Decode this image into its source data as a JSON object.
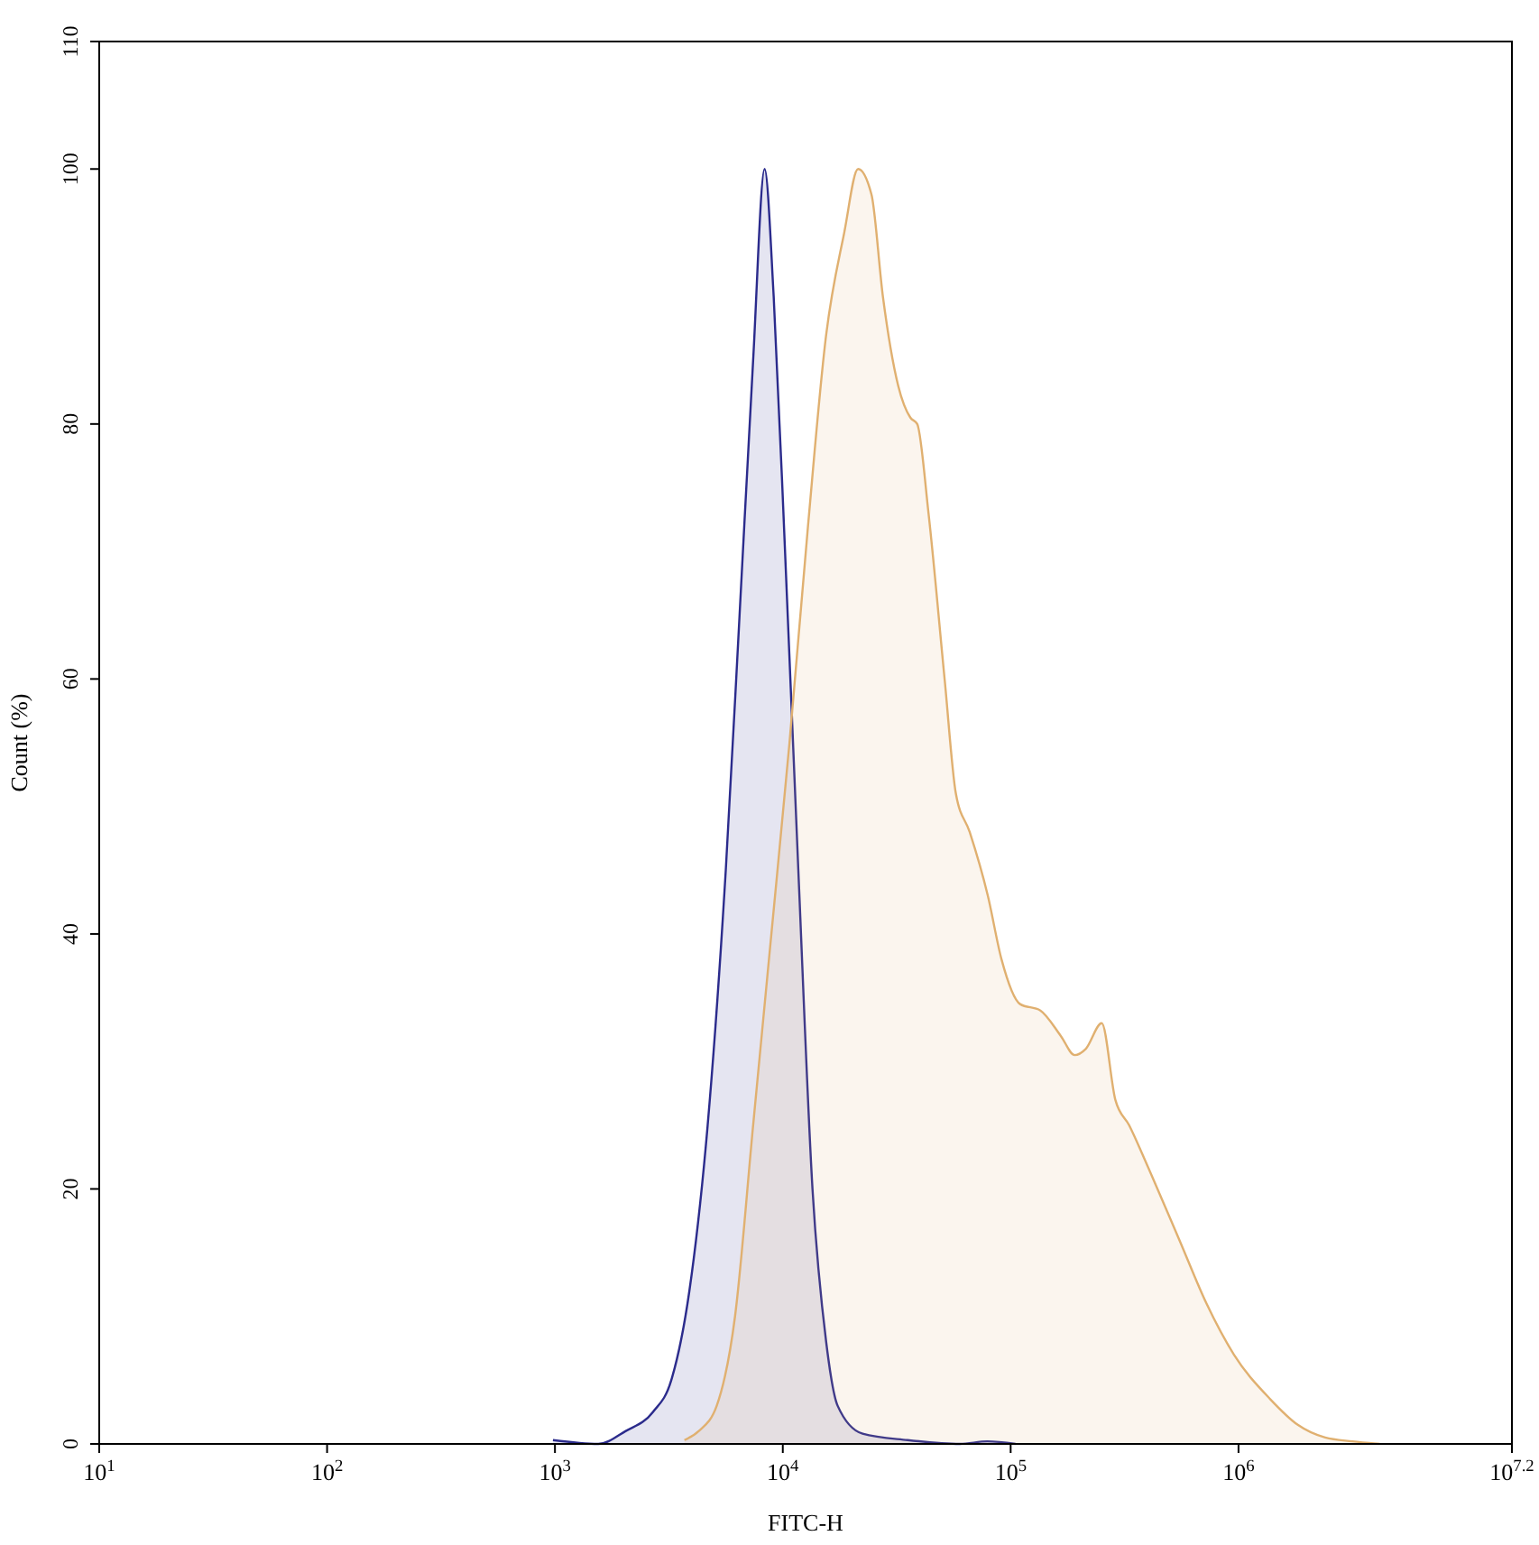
{
  "chart_data": {
    "type": "area",
    "xlabel": "FITC-H",
    "ylabel": "Count (%)",
    "log": "x",
    "xlim": [
      10,
      15848932
    ],
    "ylim": [
      0,
      110
    ],
    "xticks": [
      {
        "value": 10,
        "label": "10$^{1}$"
      },
      {
        "value": 100,
        "label": "10$^{2}$"
      },
      {
        "value": 1000,
        "label": "10$^{3}$"
      },
      {
        "value": 10000,
        "label": "10$^{4}$"
      },
      {
        "value": 100000,
        "label": "10$^{5}$"
      },
      {
        "value": 1000000,
        "label": "10$^{6}$"
      },
      {
        "value": 15848932,
        "label": "10$^{7.2}$"
      }
    ],
    "yticks": [
      0,
      20,
      40,
      60,
      80,
      100,
      110
    ],
    "grid": false,
    "series": [
      {
        "color": "#2b2b8c",
        "x": [
          980,
          1550,
          2040,
          2690,
          3240,
          3890,
          4680,
          5620,
          6460,
          7410,
          8320,
          9120,
          10230,
          11700,
          13500,
          15500,
          17400,
          22400,
          35300,
          60000,
          79000,
          105000
        ],
        "values": [
          0.3,
          0,
          1,
          2.5,
          5,
          12,
          25,
          45,
          65,
          85,
          100,
          90,
          70,
          45,
          20,
          8,
          3,
          0.8,
          0.3,
          0,
          0.2,
          0
        ]
      },
      {
        "color": "#e0b070",
        "x": [
          3700,
          4270,
          5130,
          6170,
          7410,
          8910,
          10700,
          12900,
          15500,
          18600,
          21400,
          24500,
          27500,
          32100,
          36300,
          38900,
          43600,
          51300,
          57500,
          66100,
          79400,
          91200,
          110000,
          135000,
          166000,
          191000,
          214000,
          251000,
          288000,
          331000,
          417000,
          550000,
          724000,
          955000,
          1380000,
          1820000,
          2400000,
          3160000,
          4170000
        ],
        "values": [
          0.3,
          1,
          3,
          10,
          25,
          40,
          55,
          72,
          87,
          95,
          100,
          98,
          90,
          83,
          80.5,
          80,
          73,
          60,
          51,
          48,
          43,
          38,
          34.5,
          34,
          32,
          30.5,
          31,
          33,
          27,
          25,
          21,
          16,
          11,
          7,
          3.5,
          1.5,
          0.5,
          0.2,
          0
        ]
      }
    ]
  }
}
